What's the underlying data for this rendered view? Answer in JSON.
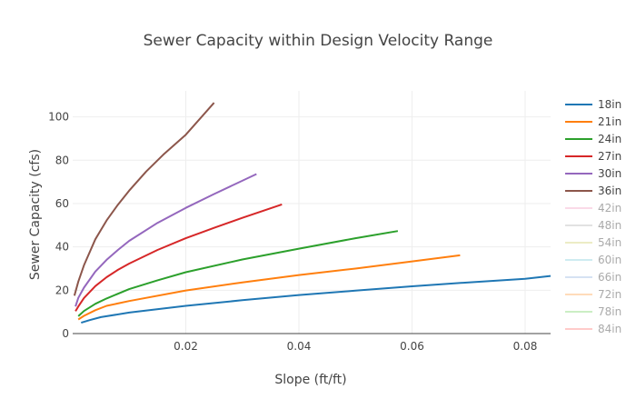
{
  "chart_data": {
    "type": "line",
    "title": "Sewer Capacity within Design Velocity Range",
    "xlabel": "Slope (ft/ft)",
    "ylabel": "Sewer Capacity (cfs)",
    "xlim": [
      0,
      0.0845
    ],
    "ylim": [
      0,
      112
    ],
    "x_ticks": [
      0.02,
      0.04,
      0.06,
      0.08
    ],
    "x_tick_labels": [
      "0.02",
      "0.04",
      "0.06",
      "0.08"
    ],
    "y_ticks": [
      0,
      20,
      40,
      60,
      80,
      100
    ],
    "y_tick_labels": [
      "0",
      "20",
      "40",
      "60",
      "80",
      "100"
    ],
    "grid": true,
    "legend_position": "right",
    "series": [
      {
        "name": "18in",
        "color": "#1f77b4",
        "visible": true,
        "x": [
          0.0015,
          0.003,
          0.005,
          0.01,
          0.02,
          0.03,
          0.04,
          0.05,
          0.06,
          0.07,
          0.08,
          0.085
        ],
        "y": [
          5.0,
          6.2,
          7.6,
          9.7,
          12.8,
          15.4,
          17.8,
          19.8,
          21.8,
          23.6,
          25.3,
          26.6
        ]
      },
      {
        "name": "21in",
        "color": "#ff7f0e",
        "visible": true,
        "x": [
          0.001,
          0.002,
          0.004,
          0.006,
          0.01,
          0.02,
          0.03,
          0.04,
          0.05,
          0.06,
          0.0685
        ],
        "y": [
          6.5,
          8.2,
          10.8,
          12.8,
          15.0,
          19.9,
          23.6,
          27.0,
          30.0,
          33.3,
          36.1
        ]
      },
      {
        "name": "24in",
        "color": "#2ca02c",
        "visible": true,
        "x": [
          0.001,
          0.002,
          0.004,
          0.006,
          0.01,
          0.015,
          0.02,
          0.03,
          0.04,
          0.05,
          0.0575
        ],
        "y": [
          8.0,
          10.4,
          13.7,
          16.2,
          20.5,
          24.6,
          28.3,
          34.2,
          39.2,
          44.0,
          47.3
        ]
      },
      {
        "name": "27in",
        "color": "#d62728",
        "visible": true,
        "x": [
          0.0005,
          0.001,
          0.002,
          0.004,
          0.006,
          0.008,
          0.01,
          0.015,
          0.02,
          0.025,
          0.03,
          0.037
        ],
        "y": [
          10.3,
          12.5,
          16.4,
          21.9,
          26.0,
          29.4,
          32.3,
          38.6,
          44.0,
          48.8,
          53.4,
          59.6
        ]
      },
      {
        "name": "30in",
        "color": "#9467bd",
        "visible": true,
        "x": [
          0.0005,
          0.001,
          0.002,
          0.004,
          0.006,
          0.008,
          0.01,
          0.015,
          0.02,
          0.025,
          0.0325
        ],
        "y": [
          12.5,
          16.5,
          21.2,
          28.6,
          34.0,
          38.6,
          42.8,
          51.1,
          58.0,
          64.4,
          73.6
        ]
      },
      {
        "name": "36in",
        "color": "#8c564b",
        "visible": true,
        "x": [
          0.0003,
          0.001,
          0.002,
          0.004,
          0.006,
          0.008,
          0.01,
          0.013,
          0.016,
          0.02,
          0.025
        ],
        "y": [
          17.5,
          24.0,
          31.5,
          43.5,
          52.2,
          59.5,
          66.0,
          74.8,
          82.5,
          91.8,
          106.5
        ]
      },
      {
        "name": "42in",
        "color": "#f7b6d2",
        "visible": false
      },
      {
        "name": "48in",
        "color": "#c7c7c7",
        "visible": false
      },
      {
        "name": "54in",
        "color": "#dbdb8d",
        "visible": false
      },
      {
        "name": "60in",
        "color": "#9edae5",
        "visible": false
      },
      {
        "name": "66in",
        "color": "#aec7e8",
        "visible": false
      },
      {
        "name": "72in",
        "color": "#ffbb78",
        "visible": false
      },
      {
        "name": "78in",
        "color": "#98df8a",
        "visible": false
      },
      {
        "name": "84in",
        "color": "#ff9896",
        "visible": false
      }
    ]
  }
}
